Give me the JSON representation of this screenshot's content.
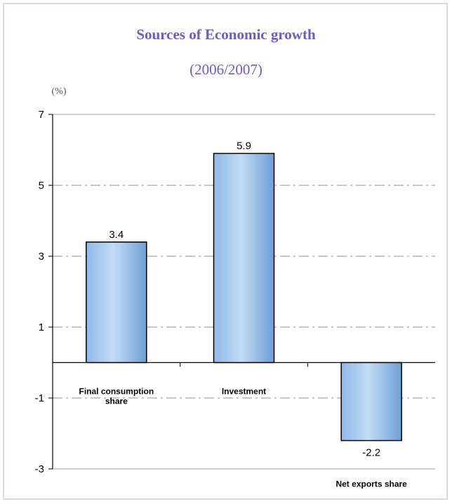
{
  "chart_data": {
    "type": "bar",
    "title": "Sources of Economic growth",
    "subtitle": "(2006/2007)",
    "unit": "(%)",
    "categories": [
      "Final consumption share",
      "Investment",
      "Net exports  share"
    ],
    "category_lines": [
      [
        "Final consumption",
        "share"
      ],
      [
        "Investment"
      ],
      [
        "Net exports  share"
      ]
    ],
    "values": [
      3.4,
      5.9,
      -2.2
    ],
    "value_labels": [
      "3.4",
      "5.9",
      "-2.2"
    ],
    "ylim": [
      -3,
      7
    ],
    "yticks": [
      -3,
      -1,
      1,
      3,
      5,
      7
    ],
    "ytick_labels": [
      "-3",
      "-1",
      "1",
      "3",
      "5",
      "7"
    ],
    "grid": true,
    "legend": "none",
    "colors": {
      "title": "#6a5acd",
      "bar_light": "#c2dcf6",
      "bar_mid": "#8fb9e6",
      "bar_dark": "#6f9fd4",
      "grid": "#b4b4b4",
      "frame": "#d8d8ea"
    }
  }
}
